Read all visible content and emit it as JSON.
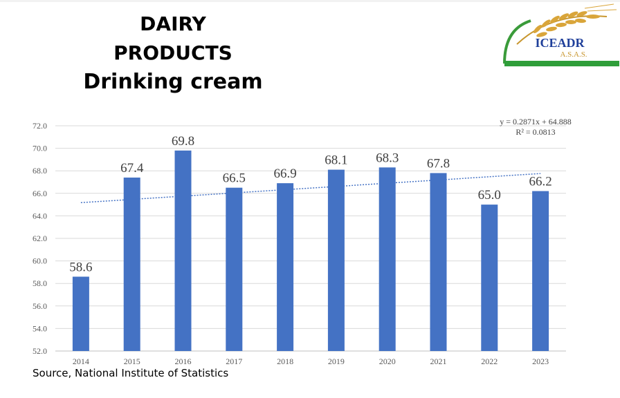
{
  "title": {
    "line1": "DAIRY",
    "line2": "PRODUCTS",
    "line3": "Drinking cream"
  },
  "logo": {
    "name": "ICEADR",
    "sub": "A.S.A.S."
  },
  "source": "Source, National Institute of Statistics",
  "chart_data": {
    "type": "bar",
    "categories": [
      "2014",
      "2015",
      "2016",
      "2017",
      "2018",
      "2019",
      "2020",
      "2021",
      "2022",
      "2023"
    ],
    "values": [
      58.6,
      67.4,
      69.8,
      66.5,
      66.9,
      68.1,
      68.3,
      67.8,
      65.0,
      66.2
    ],
    "data_labels": [
      "58.6",
      "67.4",
      "69.8",
      "66.5",
      "66.9",
      "68.1",
      "68.3",
      "67.8",
      "65.0",
      "66.2"
    ],
    "ylim": [
      52,
      72
    ],
    "yticks": [
      "52.0",
      "54.0",
      "56.0",
      "58.0",
      "60.0",
      "62.0",
      "64.0",
      "66.0",
      "68.0",
      "70.0",
      "72.0"
    ],
    "grid": true,
    "bar_color": "#4472c4",
    "trendline": {
      "slope": 0.2871,
      "intercept": 64.888,
      "equation": "y = 0.2871x + 64.888",
      "r2": "R² = 0.0813",
      "color": "#4472c4"
    }
  }
}
